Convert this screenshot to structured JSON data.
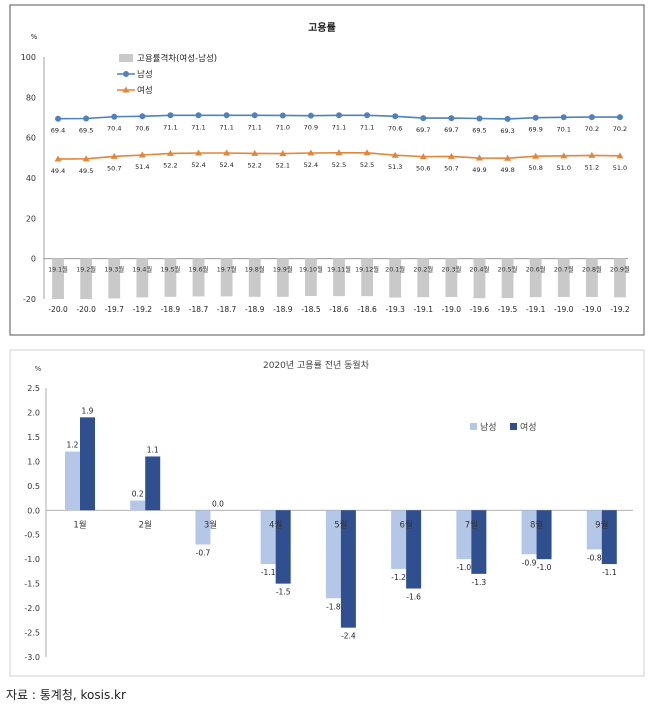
{
  "chart_data": [
    {
      "type": "line",
      "title": "고용률",
      "unit": "%",
      "ylim": [
        -20,
        100
      ],
      "yticks": [
        -20,
        0,
        20,
        40,
        60,
        80,
        100
      ],
      "categories": [
        "19.1월",
        "19.2월",
        "19.3월",
        "19.4월",
        "19.5월",
        "19.6월",
        "19.7월",
        "19.8월",
        "19.9월",
        "19.10월",
        "19.11월",
        "19.12월",
        "20.1월",
        "20.2월",
        "20.3월",
        "20.4월",
        "20.5월",
        "20.6월",
        "20.7월",
        "20.8월",
        "20.9월"
      ],
      "series": [
        {
          "name": "고용률격차(여성-남성)",
          "kind": "bar",
          "color": "#c9c9c9",
          "values": [
            -20.0,
            -20.0,
            -19.7,
            -19.2,
            -18.9,
            -18.7,
            -18.7,
            -18.9,
            -18.9,
            -18.5,
            -18.6,
            -18.6,
            -19.3,
            -19.1,
            -19.0,
            -19.6,
            -19.5,
            -19.1,
            -19.0,
            -19.0,
            -19.2
          ],
          "labels": [
            "-20.0",
            "-20.0",
            "-19.7",
            "-19.2",
            "-18.9",
            "-18.7",
            "-18.7",
            "-18.9",
            "-18.9",
            "-18.5",
            "-18.6",
            "-18.6",
            "-19.3",
            "-19.1",
            "-19.0",
            "-19.6",
            "-19.5",
            "-19.1",
            "-19.0",
            "-19.0",
            "-19.2"
          ]
        },
        {
          "name": "남성",
          "kind": "line",
          "color": "#4f81bd",
          "marker": "circle",
          "values": [
            69.4,
            69.5,
            70.4,
            70.6,
            71.1,
            71.1,
            71.1,
            71.1,
            71.0,
            70.9,
            71.1,
            71.1,
            70.6,
            69.7,
            69.7,
            69.5,
            69.3,
            69.9,
            70.1,
            70.2,
            70.2
          ],
          "labels": [
            "69.4",
            "69.5",
            "70.4",
            "70.6",
            "71.1",
            "71.1",
            "71.1",
            "71.1",
            "71.0",
            "70.9",
            "71.1",
            "71.1",
            "70.6",
            "69.7",
            "69.7",
            "69.5",
            "69.3",
            "69.9",
            "70.1",
            "70.2",
            "70.2"
          ]
        },
        {
          "name": "여성",
          "kind": "line",
          "color": "#e2863a",
          "marker": "triangle",
          "values": [
            49.4,
            49.5,
            50.7,
            51.4,
            52.2,
            52.4,
            52.4,
            52.2,
            52.1,
            52.4,
            52.5,
            52.5,
            51.3,
            50.6,
            50.7,
            49.9,
            49.8,
            50.8,
            51.0,
            51.2,
            51.0
          ],
          "labels": [
            "49.4",
            "49.5",
            "50.7",
            "51.4",
            "52.2",
            "52.4",
            "52.4",
            "52.2",
            "52.1",
            "52.4",
            "52.5",
            "52.5",
            "51.3",
            "50.6",
            "50.7",
            "49.9",
            "49.8",
            "50.8",
            "51.0",
            "51.2",
            "51.0"
          ]
        }
      ],
      "legend": "top-left",
      "grid": false
    },
    {
      "type": "bar",
      "title": "2020년 고용률 전년 동월차",
      "unit": "%",
      "ylim": [
        -3.0,
        2.5
      ],
      "yticks": [
        "2.5",
        "2.0",
        "1.5",
        "1.0",
        "0.5",
        "0.0",
        "-0.5",
        "-1.0",
        "-1.5",
        "-2.0",
        "-2.5",
        "-3.0"
      ],
      "categories": [
        "1월",
        "2월",
        "3월",
        "4월",
        "5월",
        "6월",
        "7월",
        "8월",
        "9월"
      ],
      "series": [
        {
          "name": "남성",
          "color": "#b4c7e7",
          "values": [
            1.2,
            0.2,
            -0.7,
            -1.1,
            -1.8,
            -1.2,
            -1.0,
            -0.9,
            -0.8
          ],
          "labels": [
            "1.2",
            "0.2",
            "-0.7",
            "-1.1",
            "-1.8",
            "-1.2",
            "-1.0",
            "-0.9",
            "-0.8"
          ]
        },
        {
          "name": "여성",
          "color": "#2f4f8f",
          "values": [
            1.9,
            1.1,
            0.0,
            -1.5,
            -2.4,
            -1.6,
            -1.3,
            -1.0,
            -1.1
          ],
          "labels": [
            "1.9",
            "1.1",
            "0.0",
            "-1.5",
            "-2.4",
            "-1.6",
            "-1.3",
            "-1.0",
            "-1.1"
          ]
        }
      ],
      "legend": "right",
      "grid": false
    }
  ],
  "source": "자료 : 통계청, kosis.kr"
}
